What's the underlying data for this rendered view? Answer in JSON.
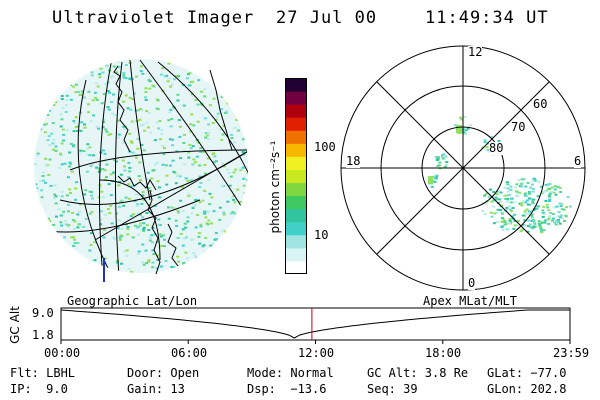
{
  "header": {
    "instrument": "Ultraviolet Imager",
    "date": "27 Jul 00",
    "time": "11:49:34 UT"
  },
  "colorbar": {
    "label": "photon cm⁻²s⁻¹",
    "tick_100": "100",
    "tick_10": "10",
    "colors": [
      "#ffffff",
      "#d8f4f4",
      "#9ee4e0",
      "#40d0c8",
      "#30c4a0",
      "#40c860",
      "#80d840",
      "#c8e820",
      "#f0f020",
      "#f8b800",
      "#f07000",
      "#e02000",
      "#b00010",
      "#700040",
      "#200030"
    ]
  },
  "polar": {
    "mlt_top": "12",
    "mlt_bottom": "0",
    "mlt_left": "18",
    "mlt_right": "6",
    "lat_60": "60",
    "lat_70": "70",
    "lat_80": "80"
  },
  "panel_labels": {
    "geographic": "Geographic Lat/Lon",
    "apex": "Apex MLat/MLT"
  },
  "altitude_plot": {
    "ylabel": "GC Alt",
    "y_top": "9.0",
    "y_bottom": "1.8",
    "x_ticks": [
      "00:00",
      "06:00",
      "12:00",
      "18:00",
      "23:59"
    ],
    "current_time_hours": 11.83,
    "marker_color": "#cc0000"
  },
  "status": {
    "flt": "Flt: LBHL",
    "door": "Door: Open",
    "mode": "Mode: Normal",
    "gc_alt": "GC Alt: 3.8 Re",
    "glat": "GLat: −77.0",
    "ip": "IP:  9.0",
    "gain": "Gain: 13",
    "dsp": "Dsp:  −13.6",
    "seq": "Seq: 39",
    "glon": "GLon: 202.8"
  }
}
